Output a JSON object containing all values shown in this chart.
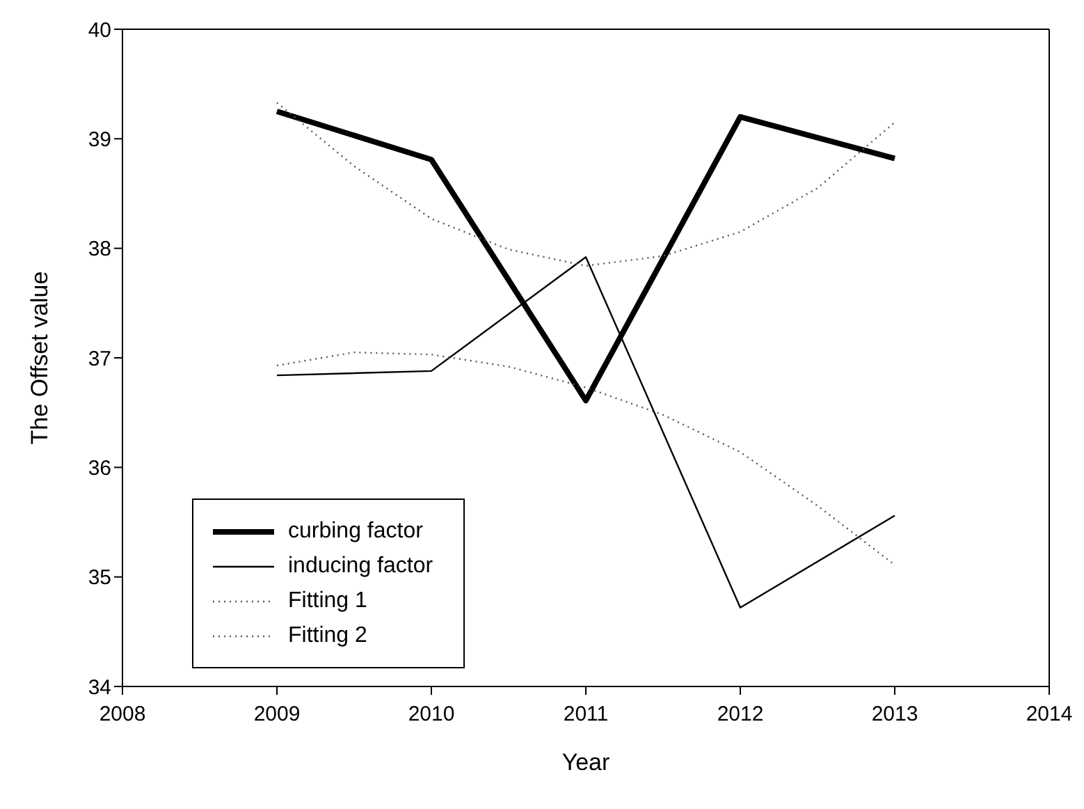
{
  "chart_data": {
    "type": "line",
    "xlabel": "Year",
    "ylabel": "The Offset value",
    "xlim": [
      2008,
      2014
    ],
    "xticks": [
      2008,
      2009,
      2010,
      2011,
      2012,
      2013,
      2014
    ],
    "ylim": [
      34,
      40
    ],
    "yticks": [
      34,
      35,
      36,
      37,
      38,
      39,
      40
    ],
    "legend": "bottom left",
    "marker": "none",
    "series": [
      {
        "name": "curbing factor",
        "color": "#000000",
        "line_style": "solid",
        "x": [
          2009,
          2010,
          2011,
          2012,
          2013
        ],
        "values": [
          39.25,
          38.81,
          36.61,
          39.2,
          38.82
        ]
      },
      {
        "name": "inducing factor",
        "color": "#000000",
        "line_style": "solid",
        "x": [
          2009,
          2010,
          2011,
          2012,
          2013
        ],
        "values": [
          36.84,
          36.88,
          37.92,
          34.72,
          35.56
        ]
      },
      {
        "name": "Fitting 1",
        "color": "#555555",
        "line_style": "dotted",
        "x": [
          2009,
          2009.5,
          2010,
          2010.5,
          2011,
          2011.5,
          2012,
          2012.5,
          2013
        ],
        "values": [
          39.33,
          38.75,
          38.27,
          37.99,
          37.84,
          37.93,
          38.15,
          38.55,
          39.15
        ]
      },
      {
        "name": "Fitting 2",
        "color": "#555555",
        "line_style": "dotted",
        "x": [
          2009,
          2009.5,
          2010,
          2010.5,
          2011,
          2011.5,
          2012,
          2012.5,
          2013
        ],
        "values": [
          36.93,
          37.05,
          37.03,
          36.92,
          36.73,
          36.48,
          36.14,
          35.65,
          35.11
        ]
      }
    ]
  }
}
